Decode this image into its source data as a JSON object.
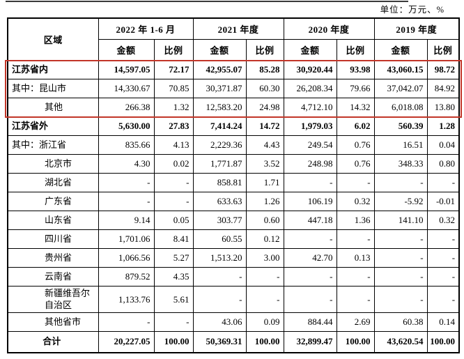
{
  "unit_note": "单位：万元、%",
  "colors": {
    "highlight_border": "#c23528",
    "grid_border": "#000000",
    "text": "#000000"
  },
  "table": {
    "region_header": "区域",
    "sub_headers": [
      "金额",
      "比例"
    ],
    "col_groups": [
      {
        "label": "2022 年 1-6 月"
      },
      {
        "label": "2021 年度"
      },
      {
        "label": "2020 年度"
      },
      {
        "label": "2019 年度"
      }
    ],
    "rows": [
      {
        "region": "江苏省内",
        "indent": 0,
        "bold": true,
        "highlight": true,
        "values": [
          "14,597.05",
          "72.17",
          "42,955.07",
          "85.28",
          "30,920.44",
          "93.98",
          "43,060.15",
          "98.72"
        ]
      },
      {
        "region": "其中：昆山市",
        "indent": 0,
        "bold": false,
        "highlight": true,
        "values": [
          "14,330.67",
          "70.85",
          "30,371.87",
          "60.30",
          "26,208.34",
          "79.66",
          "37,042.07",
          "84.92"
        ]
      },
      {
        "region": "其他",
        "indent": 1,
        "bold": false,
        "highlight": true,
        "values": [
          "266.38",
          "1.32",
          "12,583.20",
          "24.98",
          "4,712.10",
          "14.32",
          "6,018.08",
          "13.80"
        ]
      },
      {
        "region": "江苏省外",
        "indent": 0,
        "bold": true,
        "values": [
          "5,630.00",
          "27.83",
          "7,414.24",
          "14.72",
          "1,979.03",
          "6.02",
          "560.39",
          "1.28"
        ]
      },
      {
        "region": "其中：浙江省",
        "indent": 0,
        "bold": false,
        "values": [
          "835.66",
          "4.13",
          "2,229.36",
          "4.43",
          "249.54",
          "0.76",
          "16.51",
          "0.04"
        ]
      },
      {
        "region": "北京市",
        "indent": 1,
        "bold": false,
        "values": [
          "4.30",
          "0.02",
          "1,771.87",
          "3.52",
          "248.98",
          "0.76",
          "348.33",
          "0.80"
        ]
      },
      {
        "region": "湖北省",
        "indent": 1,
        "bold": false,
        "values": [
          "-",
          "-",
          "858.81",
          "1.71",
          "-",
          "-",
          "-",
          "-"
        ]
      },
      {
        "region": "广东省",
        "indent": 1,
        "bold": false,
        "values": [
          "-",
          "-",
          "633.63",
          "1.26",
          "106.19",
          "0.32",
          "-5.92",
          "-0.01"
        ]
      },
      {
        "region": "山东省",
        "indent": 1,
        "bold": false,
        "values": [
          "9.14",
          "0.05",
          "303.77",
          "0.60",
          "447.18",
          "1.36",
          "141.10",
          "0.32"
        ]
      },
      {
        "region": "四川省",
        "indent": 1,
        "bold": false,
        "values": [
          "1,701.06",
          "8.41",
          "60.55",
          "0.12",
          "-",
          "-",
          "-",
          "-"
        ]
      },
      {
        "region": "贵州省",
        "indent": 1,
        "bold": false,
        "values": [
          "1,066.56",
          "5.27",
          "1,513.20",
          "3.00",
          "42.70",
          "0.13",
          "-",
          "-"
        ]
      },
      {
        "region": "云南省",
        "indent": 1,
        "bold": false,
        "values": [
          "879.52",
          "4.35",
          "-",
          "-",
          "-",
          "-",
          "-",
          "-"
        ]
      },
      {
        "region": "新疆维吾尔自治区",
        "indent": 1,
        "bold": false,
        "tall": true,
        "values": [
          "1,133.76",
          "5.61",
          "-",
          "-",
          "-",
          "-",
          "-",
          "-"
        ]
      },
      {
        "region": "其他省市",
        "indent": 1,
        "bold": false,
        "values": [
          "-",
          "-",
          "43.06",
          "0.09",
          "884.44",
          "2.69",
          "60.38",
          "0.14"
        ]
      },
      {
        "region": "合计",
        "indent": 0,
        "bold": true,
        "center": true,
        "total": true,
        "values": [
          "20,227.05",
          "100.00",
          "50,369.31",
          "100.00",
          "32,899.47",
          "100.00",
          "43,620.54",
          "100.00"
        ]
      }
    ]
  }
}
